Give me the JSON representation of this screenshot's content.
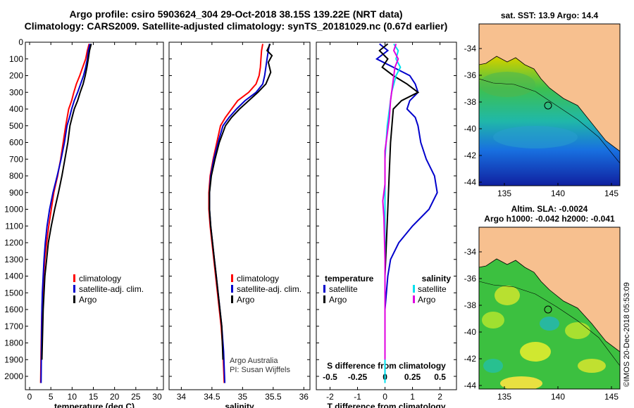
{
  "header": {
    "line1": "Argo profile: csiro 5903624_304 29-Oct-2018 38.15S 139.22E (NRT data)",
    "line2": "Climatology: CARS2009. Satellite-adjusted climatology: synTS_20181029.nc (0.67d earlier)"
  },
  "colors": {
    "climatology": "#ff0000",
    "satellite": "#0000cc",
    "argo": "#000000",
    "sat_cyan": "#00e0ee",
    "argo_mag": "#e000e0"
  },
  "depth_ticks": [
    "0",
    "100",
    "200",
    "300",
    "400",
    "500",
    "600",
    "700",
    "800",
    "900",
    "1000",
    "1100",
    "1200",
    "1300",
    "1400",
    "1500",
    "1600",
    "1700",
    "1800",
    "1900",
    "2000"
  ],
  "chart_data": [
    {
      "type": "line",
      "xlabel": "temperature (deg C)",
      "xticks": [
        "0",
        "5",
        "10",
        "15",
        "20",
        "25",
        "30"
      ],
      "xlim": [
        -1,
        31.5
      ],
      "ylim": [
        0,
        2080
      ],
      "legend": [
        "climatology",
        "satellite-adj. clim.",
        "Argo"
      ],
      "series": [
        {
          "name": "climatology",
          "color": "#ff0000",
          "x": [
            14.0,
            13.6,
            13.2,
            12.5,
            11.8,
            11.0,
            10.4,
            9.9,
            9.2,
            8.5,
            7.9,
            7.3,
            6.6,
            5.7,
            5.1,
            4.5,
            4.0,
            3.6,
            3.3,
            3.1,
            2.9,
            2.8,
            2.7,
            2.6
          ],
          "y": [
            10,
            50,
            100,
            150,
            200,
            250,
            300,
            350,
            400,
            500,
            600,
            700,
            800,
            900,
            1000,
            1100,
            1200,
            1300,
            1400,
            1500,
            1600,
            1700,
            1850,
            2040
          ]
        },
        {
          "name": "satellite-adj. clim.",
          "color": "#0000cc",
          "x": [
            14.2,
            13.8,
            13.6,
            13.2,
            12.7,
            12.0,
            11.3,
            10.5,
            9.9,
            9.4,
            8.8,
            8.2,
            7.4,
            6.5,
            5.5,
            4.7,
            4.1,
            3.7,
            3.4,
            3.2,
            3.0,
            2.9,
            2.8,
            2.7
          ],
          "y": [
            10,
            50,
            100,
            150,
            200,
            250,
            300,
            350,
            400,
            450,
            500,
            600,
            700,
            800,
            900,
            1000,
            1100,
            1200,
            1300,
            1400,
            1500,
            1600,
            1800,
            2040
          ]
        },
        {
          "name": "Argo",
          "color": "#000000",
          "x": [
            14.5,
            14.1,
            13.8,
            13.5,
            13.1,
            12.6,
            11.9,
            11.3,
            10.5,
            10.0,
            9.5,
            9.0,
            8.3,
            7.6,
            6.8,
            5.9,
            5.1,
            4.4,
            4.0,
            3.6,
            3.4,
            3.2,
            3.0,
            2.9
          ],
          "y": [
            10,
            50,
            100,
            150,
            200,
            250,
            300,
            350,
            400,
            450,
            500,
            600,
            700,
            800,
            900,
            1000,
            1100,
            1200,
            1300,
            1400,
            1500,
            1600,
            1800,
            1900
          ]
        }
      ]
    },
    {
      "type": "line",
      "xlabel": "salinity",
      "xticks": [
        "34",
        "34.5",
        "35",
        "35.5",
        "36"
      ],
      "xlim": [
        33.8,
        36.1
      ],
      "ylim": [
        0,
        2080
      ],
      "legend": [
        "climatology",
        "satellite-adj. clim.",
        "Argo"
      ],
      "annotations": [
        "Argo Australia",
        "PI: Susan Wijffels"
      ],
      "series": [
        {
          "name": "climatology",
          "color": "#ff0000",
          "x": [
            35.33,
            35.31,
            35.3,
            35.29,
            35.27,
            35.22,
            35.1,
            34.92,
            34.82,
            34.72,
            34.64,
            34.58,
            34.52,
            34.47,
            34.45,
            34.45,
            34.47,
            34.5,
            34.53,
            34.56,
            34.59,
            34.62,
            34.65,
            34.68,
            34.7
          ],
          "y": [
            10,
            50,
            100,
            150,
            200,
            250,
            300,
            350,
            400,
            450,
            500,
            600,
            700,
            800,
            900,
            1000,
            1100,
            1200,
            1300,
            1400,
            1500,
            1600,
            1700,
            1850,
            2040
          ]
        },
        {
          "name": "satellite-adj. clim.",
          "color": "#0000cc",
          "x": [
            35.44,
            35.42,
            35.4,
            35.38,
            35.36,
            35.33,
            35.22,
            35.04,
            34.9,
            34.78,
            34.68,
            34.6,
            34.53,
            34.48,
            34.46,
            34.46,
            34.48,
            34.51,
            34.54,
            34.57,
            34.6,
            34.63,
            34.66,
            34.69,
            34.71
          ],
          "y": [
            10,
            50,
            100,
            150,
            200,
            250,
            300,
            350,
            400,
            450,
            500,
            600,
            700,
            800,
            900,
            1000,
            1100,
            1200,
            1300,
            1400,
            1500,
            1600,
            1700,
            1850,
            2040
          ]
        },
        {
          "name": "Argo",
          "color": "#000000",
          "x": [
            35.45,
            35.4,
            35.48,
            35.42,
            35.46,
            35.38,
            35.25,
            35.1,
            34.95,
            34.82,
            34.72,
            34.62,
            34.55,
            34.49,
            34.46,
            34.46,
            34.48,
            34.51,
            34.54,
            34.57,
            34.6,
            34.63,
            34.66,
            34.68
          ],
          "y": [
            10,
            50,
            80,
            120,
            180,
            250,
            300,
            350,
            400,
            450,
            500,
            600,
            700,
            800,
            900,
            1000,
            1100,
            1200,
            1300,
            1400,
            1500,
            1600,
            1700,
            1900
          ]
        }
      ]
    },
    {
      "type": "line",
      "xlabel": "T difference from climatology",
      "x2label": "S difference from climatology",
      "xticks": [
        "-2",
        "-1",
        "0",
        "1",
        "2"
      ],
      "x2ticks": [
        "-0.5",
        "-0.25",
        "0",
        "0.25",
        "0.5"
      ],
      "xlim": [
        -2.5,
        2.6
      ],
      "ylim": [
        0,
        2080
      ],
      "legend_left_title": "temperature",
      "legend_right_title": "salinity",
      "legend_left": [
        "satellite",
        "Argo"
      ],
      "legend_right": [
        "satellite",
        "Argo"
      ],
      "series": [
        {
          "name": "satellite",
          "color": "#0000cc",
          "x": [
            -0.2,
            0.1,
            -0.3,
            0.3,
            0.9,
            1.1,
            1.2,
            0.9,
            0.8,
            1.1,
            1.2,
            1.3,
            1.5,
            1.8,
            1.9,
            1.6,
            1.0,
            0.5,
            0.2,
            0.1,
            0.05,
            0.0,
            0.0,
            0.0
          ],
          "y": [
            10,
            50,
            100,
            150,
            200,
            250,
            300,
            350,
            400,
            450,
            500,
            600,
            700,
            800,
            900,
            1000,
            1100,
            1200,
            1300,
            1400,
            1500,
            1600,
            1800,
            2040
          ]
        },
        {
          "name": "Argo",
          "color": "#000000",
          "x": [
            0.1,
            -0.2,
            0.1,
            -0.1,
            0.3,
            0.8,
            1.2,
            0.6,
            0.3,
            0.2,
            0.15,
            0.1,
            0.05,
            0.0,
            0.0,
            0.0
          ],
          "y": [
            10,
            50,
            100,
            150,
            200,
            250,
            300,
            350,
            400,
            600,
            800,
            1000,
            1200,
            1400,
            1600,
            1900
          ]
        },
        {
          "name": "satellite (S)",
          "color": "#00e0ee",
          "axis": "S",
          "x": [
            0.08,
            0.12,
            0.1,
            0.14,
            0.1,
            0.06,
            0.04,
            0.02,
            0.01,
            0.0,
            0.0,
            0.0,
            0.0,
            0.0,
            0.0,
            0.0,
            0.0,
            0.0,
            0.0
          ],
          "y": [
            10,
            50,
            100,
            150,
            200,
            300,
            400,
            500,
            600,
            700,
            800,
            900,
            1000,
            1200,
            1400,
            1600,
            1800,
            1950,
            2040
          ]
        },
        {
          "name": "Argo (S)",
          "color": "#e000e0",
          "axis": "S",
          "x": [
            0.1,
            0.08,
            0.12,
            0.09,
            0.07,
            0.05,
            0.04,
            0.02,
            0.0,
            0.0,
            0.0,
            -0.02,
            -0.01,
            0.0,
            0.0
          ],
          "y": [
            10,
            50,
            100,
            150,
            250,
            350,
            450,
            550,
            650,
            750,
            850,
            950,
            1050,
            1300,
            1900
          ]
        }
      ]
    }
  ],
  "maps": {
    "top": {
      "title": "sat. SST: 13.9 Argo: 14.4",
      "lat_ticks": [
        "-34",
        "-36",
        "-38",
        "-40",
        "-42",
        "-44"
      ],
      "lon_ticks": [
        "135",
        "140",
        "145"
      ]
    },
    "bottom": {
      "title_line1": "Altim. SLA: -0.0024",
      "title_line2": "Argo h1000: -0.042 h2000: -0.041",
      "lat_ticks": [
        "-34",
        "-36",
        "-38",
        "-40",
        "-42",
        "-44"
      ],
      "lon_ticks": [
        "135",
        "140",
        "145"
      ]
    }
  },
  "credit": "©IMOS 20-Dec-2018 05:53:09"
}
